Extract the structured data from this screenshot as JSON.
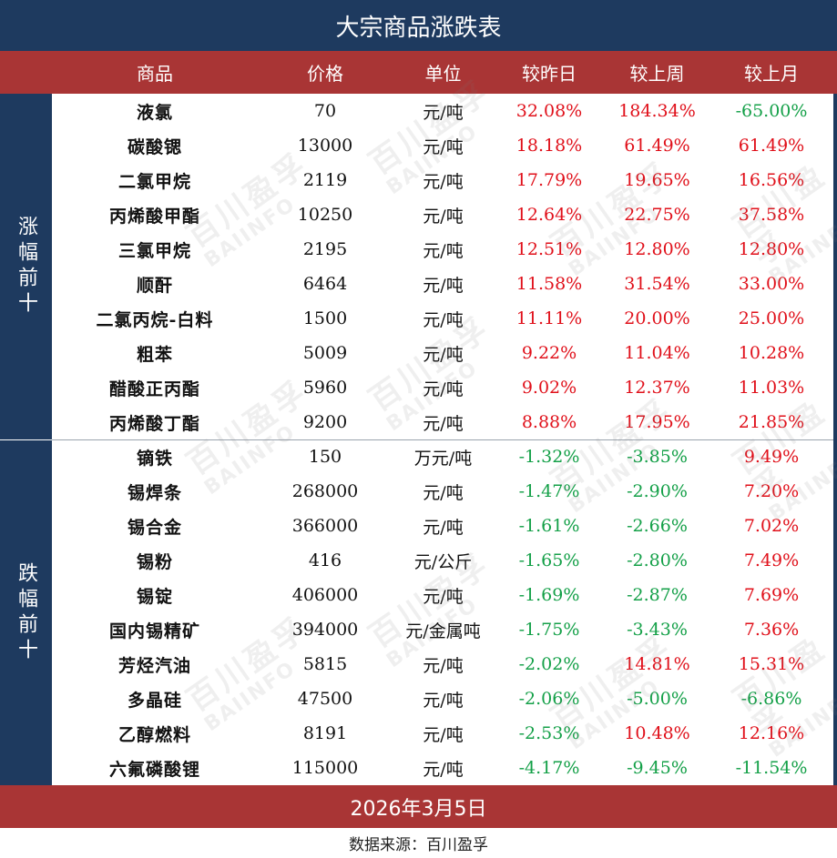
{
  "title": "大宗商品涨跌表",
  "headers": [
    "商品",
    "价格",
    "单位",
    "较昨日",
    "较上周",
    "较上月"
  ],
  "sections": {
    "rise_label": "涨幅前十",
    "fall_label": "跌幅前十"
  },
  "rows": [
    {
      "name": "液氯",
      "price": "70",
      "unit": "元/吨",
      "day": "32.08%",
      "week": "184.34%",
      "month": "-65.00%"
    },
    {
      "name": "碳酸锶",
      "price": "13000",
      "unit": "元/吨",
      "day": "18.18%",
      "week": "61.49%",
      "month": "61.49%"
    },
    {
      "name": "二氯甲烷",
      "price": "2119",
      "unit": "元/吨",
      "day": "17.79%",
      "week": "19.65%",
      "month": "16.56%"
    },
    {
      "name": "丙烯酸甲酯",
      "price": "10250",
      "unit": "元/吨",
      "day": "12.64%",
      "week": "22.75%",
      "month": "37.58%"
    },
    {
      "name": "三氯甲烷",
      "price": "2195",
      "unit": "元/吨",
      "day": "12.51%",
      "week": "12.80%",
      "month": "12.80%"
    },
    {
      "name": "顺酐",
      "price": "6464",
      "unit": "元/吨",
      "day": "11.58%",
      "week": "31.54%",
      "month": "33.00%"
    },
    {
      "name": "二氯丙烷-白料",
      "price": "1500",
      "unit": "元/吨",
      "day": "11.11%",
      "week": "20.00%",
      "month": "25.00%"
    },
    {
      "name": "粗苯",
      "price": "5009",
      "unit": "元/吨",
      "day": "9.22%",
      "week": "11.04%",
      "month": "10.28%"
    },
    {
      "name": "醋酸正丙酯",
      "price": "5960",
      "unit": "元/吨",
      "day": "9.02%",
      "week": "12.37%",
      "month": "11.03%"
    },
    {
      "name": "丙烯酸丁酯",
      "price": "9200",
      "unit": "元/吨",
      "day": "8.88%",
      "week": "17.95%",
      "month": "21.85%"
    },
    {
      "name": "镝铁",
      "price": "150",
      "unit": "万元/吨",
      "day": "-1.32%",
      "week": "-3.85%",
      "month": "9.49%"
    },
    {
      "name": "锡焊条",
      "price": "268000",
      "unit": "元/吨",
      "day": "-1.47%",
      "week": "-2.90%",
      "month": "7.20%"
    },
    {
      "name": "锡合金",
      "price": "366000",
      "unit": "元/吨",
      "day": "-1.61%",
      "week": "-2.66%",
      "month": "7.02%"
    },
    {
      "name": "锡粉",
      "price": "416",
      "unit": "元/公斤",
      "day": "-1.65%",
      "week": "-2.80%",
      "month": "7.49%"
    },
    {
      "name": "锡锭",
      "price": "406000",
      "unit": "元/吨",
      "day": "-1.69%",
      "week": "-2.87%",
      "month": "7.69%"
    },
    {
      "name": "国内锡精矿",
      "price": "394000",
      "unit": "元/金属吨",
      "day": "-1.75%",
      "week": "-3.43%",
      "month": "7.36%"
    },
    {
      "name": "芳烃汽油",
      "price": "5815",
      "unit": "元/吨",
      "day": "-2.02%",
      "week": "14.81%",
      "month": "15.31%"
    },
    {
      "name": "多晶硅",
      "price": "47500",
      "unit": "元/吨",
      "day": "-2.06%",
      "week": "-5.00%",
      "month": "-6.86%"
    },
    {
      "name": "乙醇燃料",
      "price": "8191",
      "unit": "元/吨",
      "day": "-2.53%",
      "week": "10.48%",
      "month": "12.16%"
    },
    {
      "name": "六氟磷酸锂",
      "price": "115000",
      "unit": "元/吨",
      "day": "-4.17%",
      "week": "-9.45%",
      "month": "-11.54%"
    }
  ],
  "date": "2026年3月5日",
  "source": "数据来源：百川盈孚",
  "watermark": {
    "cn": "百川盈孚",
    "en": "BAIINFO"
  },
  "colors": {
    "navy": "#1e3a5f",
    "red_band": "#a93535",
    "up": "#e0101a",
    "down": "#14a048"
  }
}
